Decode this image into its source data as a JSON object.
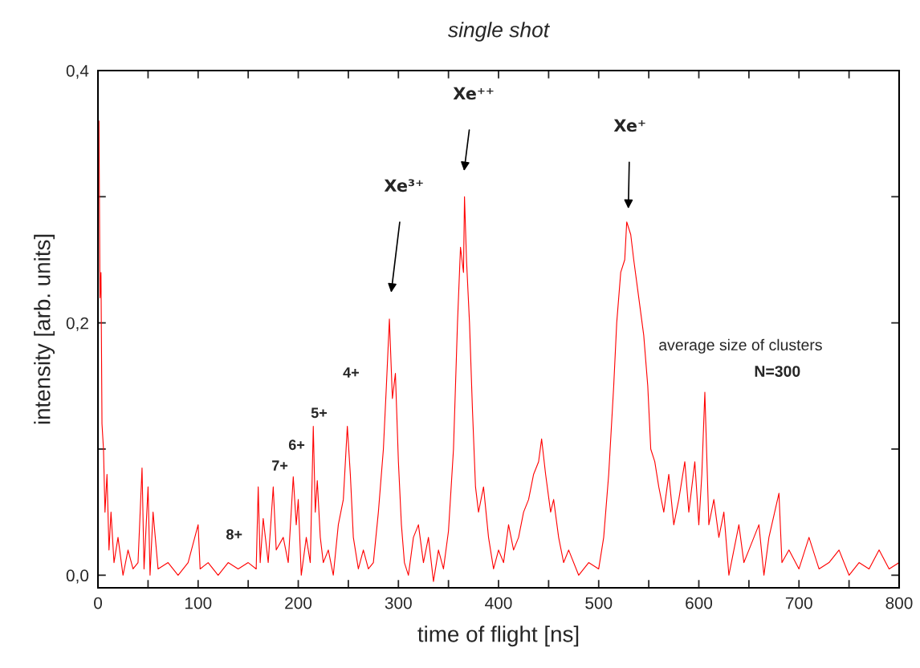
{
  "chart_data": {
    "type": "line",
    "title": "single shot",
    "xlabel": "time of flight [ns]",
    "ylabel": "intensity [arb. units]",
    "xlim": [
      0,
      800
    ],
    "ylim": [
      -0.01,
      0.4
    ],
    "xticks": [
      0,
      {
        "value": 50,
        "label": null
      },
      100,
      {
        "value": 150,
        "label": null
      },
      200,
      {
        "value": 250,
        "label": null
      },
      300,
      {
        "value": 350,
        "label": null
      },
      400,
      {
        "value": 450,
        "label": null
      },
      500,
      {
        "value": 550,
        "label": null
      },
      600,
      {
        "value": 650,
        "label": null
      },
      700,
      {
        "value": 750,
        "label": null
      },
      800
    ],
    "yticks": [
      {
        "value": 0,
        "label": "0,0"
      },
      {
        "value": 0.1,
        "label": null
      },
      {
        "value": 0.2,
        "label": "0,2"
      },
      {
        "value": 0.3,
        "label": null
      },
      {
        "value": 0.4,
        "label": "0,4"
      }
    ],
    "grid": false,
    "legend": false,
    "marker": "none",
    "line_style": "solid",
    "series": [
      {
        "color": "#ff0000",
        "x": [
          1,
          2,
          3,
          4,
          5.5,
          7,
          9,
          11,
          13,
          16,
          20,
          25,
          30,
          35,
          40,
          44,
          46,
          50,
          52,
          55,
          60,
          70,
          80,
          90,
          100,
          102,
          110,
          120,
          130,
          140,
          150,
          158,
          160,
          162,
          165,
          170,
          175,
          178,
          185,
          190,
          195,
          198,
          200,
          203,
          208,
          212,
          215,
          217,
          219,
          222,
          225,
          230,
          235,
          240,
          245,
          249,
          252,
          255,
          260,
          265,
          270,
          275,
          280,
          285,
          288,
          291,
          294,
          297,
          300,
          303,
          306,
          310,
          315,
          320,
          325,
          330,
          335,
          340,
          345,
          350,
          355,
          359,
          362,
          365,
          366,
          368,
          371,
          374,
          377,
          380,
          385,
          390,
          395,
          400,
          405,
          410,
          415,
          420,
          425,
          430,
          435,
          440,
          443,
          447,
          452,
          455,
          460,
          465,
          470,
          480,
          490,
          500,
          505,
          510,
          515,
          518,
          522,
          526,
          528,
          532,
          535,
          540,
          545,
          549,
          552,
          556,
          560,
          565,
          570,
          575,
          580,
          586,
          590,
          596,
          600,
          603,
          606,
          610,
          615,
          620,
          625,
          630,
          640,
          645,
          650,
          660,
          665,
          670,
          680,
          683,
          690,
          700,
          710,
          720,
          730,
          740,
          750,
          760,
          770,
          780,
          790,
          800
        ],
        "values": [
          0.36,
          0.22,
          0.24,
          0.12,
          0.1,
          0.05,
          0.08,
          0.02,
          0.05,
          0.01,
          0.03,
          0.0,
          0.02,
          0.005,
          0.01,
          0.085,
          0.005,
          0.07,
          0.0,
          0.05,
          0.005,
          0.01,
          0.0,
          0.01,
          0.04,
          0.005,
          0.01,
          0.0,
          0.01,
          0.005,
          0.01,
          0.005,
          0.07,
          0.01,
          0.045,
          0.01,
          0.07,
          0.02,
          0.03,
          0.01,
          0.078,
          0.04,
          0.06,
          0.0,
          0.03,
          0.01,
          0.118,
          0.05,
          0.075,
          0.03,
          0.01,
          0.02,
          0.0,
          0.04,
          0.06,
          0.118,
          0.08,
          0.03,
          0.005,
          0.02,
          0.005,
          0.01,
          0.05,
          0.1,
          0.15,
          0.203,
          0.14,
          0.16,
          0.09,
          0.04,
          0.01,
          0.0,
          0.03,
          0.04,
          0.01,
          0.03,
          -0.005,
          0.02,
          0.005,
          0.035,
          0.1,
          0.2,
          0.26,
          0.24,
          0.3,
          0.25,
          0.2,
          0.13,
          0.07,
          0.05,
          0.07,
          0.03,
          0.005,
          0.02,
          0.01,
          0.04,
          0.02,
          0.03,
          0.05,
          0.06,
          0.08,
          0.09,
          0.108,
          0.08,
          0.05,
          0.06,
          0.03,
          0.01,
          0.02,
          0.0,
          0.01,
          0.005,
          0.03,
          0.08,
          0.15,
          0.2,
          0.24,
          0.25,
          0.28,
          0.27,
          0.25,
          0.22,
          0.19,
          0.15,
          0.1,
          0.09,
          0.07,
          0.05,
          0.08,
          0.04,
          0.06,
          0.09,
          0.05,
          0.09,
          0.04,
          0.08,
          0.145,
          0.04,
          0.06,
          0.03,
          0.05,
          0.0,
          0.04,
          0.01,
          0.02,
          0.04,
          0.0,
          0.03,
          0.065,
          0.01,
          0.02,
          0.005,
          0.03,
          0.005,
          0.01,
          0.02,
          0.0,
          0.01,
          0.005,
          0.02,
          0.005,
          0.01
        ]
      }
    ],
    "annotations": [
      "Xe³⁺",
      "Xe⁺⁺",
      "Xe⁺",
      "8+",
      "7+",
      "6+",
      "5+",
      "4+",
      "average size of clusters",
      "N=300"
    ]
  }
}
